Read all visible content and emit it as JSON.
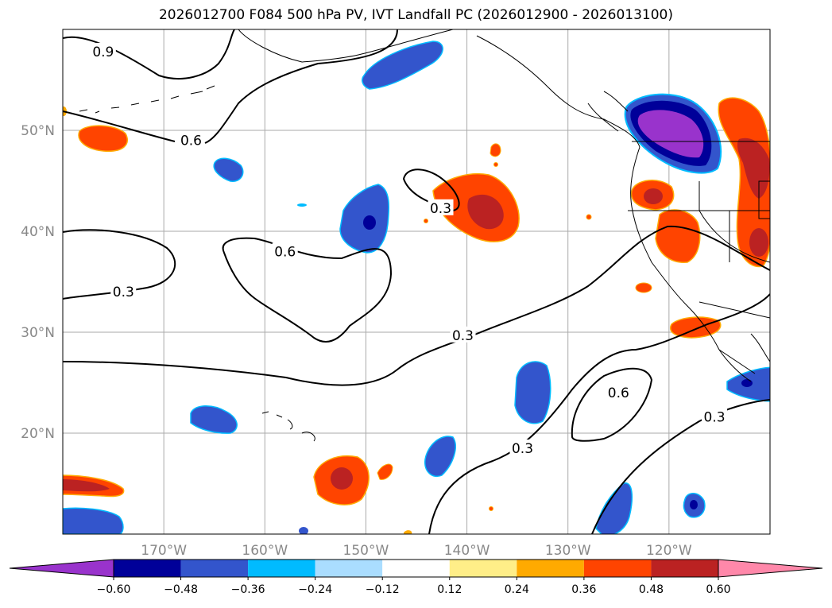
{
  "title": "2026012700 F084 500 hPa PV, IVT Landfall PC (2026012900 - 2026013100)",
  "map": {
    "lon_range": [
      -180,
      -110
    ],
    "lat_range": [
      10,
      60
    ],
    "lat_ticks": [
      {
        "value": 50,
        "label": "50°N"
      },
      {
        "value": 40,
        "label": "40°N"
      },
      {
        "value": 30,
        "label": "30°N"
      },
      {
        "value": 20,
        "label": "20°N"
      }
    ],
    "lon_ticks": [
      {
        "value": -170,
        "label": "170°W"
      },
      {
        "value": -160,
        "label": "160°W"
      },
      {
        "value": -150,
        "label": "150°W"
      },
      {
        "value": -140,
        "label": "140°W"
      },
      {
        "value": -130,
        "label": "130°W"
      },
      {
        "value": -120,
        "label": "120°W"
      }
    ],
    "grid": true,
    "contour_labels": [
      {
        "text": "0.9",
        "lon": -176,
        "lat": 57.8
      },
      {
        "text": "0.6",
        "lon": -167.3,
        "lat": 49.0
      },
      {
        "text": "0.3",
        "lon": -142.6,
        "lat": 42.3
      },
      {
        "text": "0.6",
        "lon": -158.0,
        "lat": 38.0
      },
      {
        "text": "0.3",
        "lon": -174.0,
        "lat": 34.0
      },
      {
        "text": "0.3",
        "lon": -140.4,
        "lat": 29.7
      },
      {
        "text": "0.6",
        "lon": -125.0,
        "lat": 24.0
      },
      {
        "text": "0.3",
        "lon": -115.5,
        "lat": 21.6
      },
      {
        "text": "0.3",
        "lon": -134.5,
        "lat": 18.5
      }
    ]
  },
  "colorbar": {
    "colors": [
      "#9933cc",
      "#000099",
      "#3355cc",
      "#00bbff",
      "#aaddff",
      "#ffffff",
      "#ffee88",
      "#ffaa00",
      "#ff4400",
      "#bb2222",
      "#ff88aa"
    ],
    "tick_labels": [
      "−0.60",
      "−0.48",
      "−0.36",
      "−0.24",
      "−0.12",
      "0.12",
      "0.24",
      "0.36",
      "0.48",
      "0.60"
    ]
  }
}
